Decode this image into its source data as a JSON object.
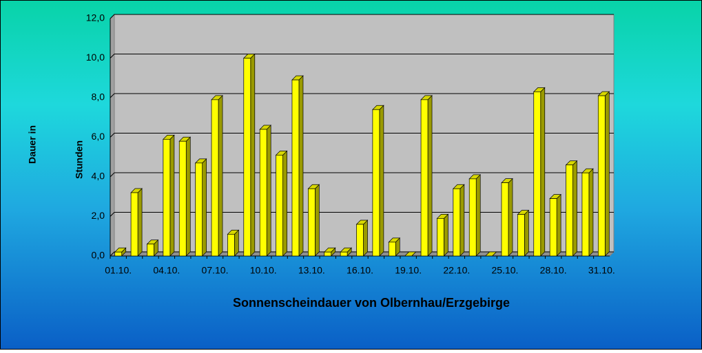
{
  "chart_data": {
    "type": "bar3d",
    "title": "Sonnenscheindauer von Olbernhau/Erzgebirge",
    "y_label": [
      "Dauer in",
      "Stunden"
    ],
    "categories": [
      "01.10.",
      null,
      null,
      "04.10.",
      null,
      null,
      "07.10.",
      null,
      null,
      "10.10.",
      null,
      null,
      "13.10.",
      null,
      null,
      "16.10.",
      null,
      null,
      "19.10.",
      null,
      null,
      "22.10.",
      null,
      null,
      "25.10.",
      null,
      null,
      "28.10.",
      null,
      null,
      "31.10."
    ],
    "values": [
      0.2,
      3.2,
      0.6,
      5.9,
      5.8,
      4.7,
      7.9,
      1.1,
      10.0,
      6.4,
      5.1,
      8.9,
      3.4,
      0.2,
      0.2,
      1.6,
      7.4,
      0.7,
      0,
      7.9,
      1.9,
      3.4,
      3.9,
      0,
      3.7,
      2.1,
      8.3,
      2.9,
      4.6,
      4.2,
      8.1
    ],
    "color": "#ffff00",
    "ylim": [
      0,
      12
    ],
    "yticks": [
      {
        "value": 0,
        "label": "0,0"
      },
      {
        "value": 2,
        "label": "2,0"
      },
      {
        "value": 4,
        "label": "4,0"
      },
      {
        "value": 6,
        "label": "6,0"
      },
      {
        "value": 8,
        "label": "8,0"
      },
      {
        "value": 10,
        "label": "10,0"
      },
      {
        "value": 12,
        "label": "12,0"
      }
    ],
    "grid": true
  }
}
